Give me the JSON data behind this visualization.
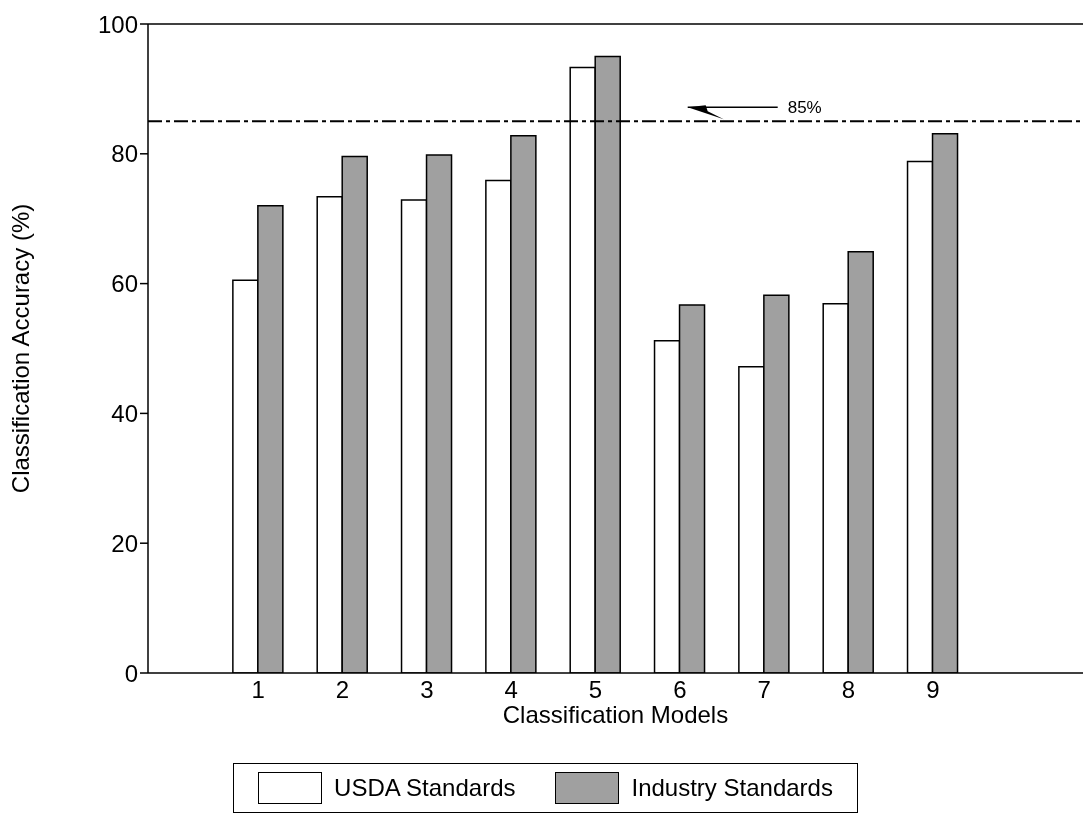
{
  "chart_data": {
    "type": "bar",
    "xlabel": "Classification Models",
    "ylabel": "Classification Accuracy (%)",
    "categories": [
      "1",
      "2",
      "3",
      "4",
      "5",
      "6",
      "7",
      "8",
      "9"
    ],
    "series": [
      {
        "name": "USDA Standards",
        "color": "#ffffff",
        "values": [
          60.5,
          73.4,
          72.9,
          75.9,
          93.3,
          51.2,
          47.2,
          56.9,
          78.8
        ]
      },
      {
        "name": "Industry Standards",
        "color": "#a0a0a0",
        "values": [
          72,
          79.6,
          79.8,
          82.8,
          95,
          56.7,
          58.2,
          64.9,
          83.1
        ]
      }
    ],
    "ylim": [
      0,
      100
    ],
    "yticks": [
      0,
      20,
      40,
      60,
      80,
      100
    ],
    "legend": "bottom",
    "ref_lines": [
      {
        "axis": "y",
        "value": 85,
        "label": "85%",
        "line_style": "dashed",
        "color": "#000000"
      }
    ]
  }
}
